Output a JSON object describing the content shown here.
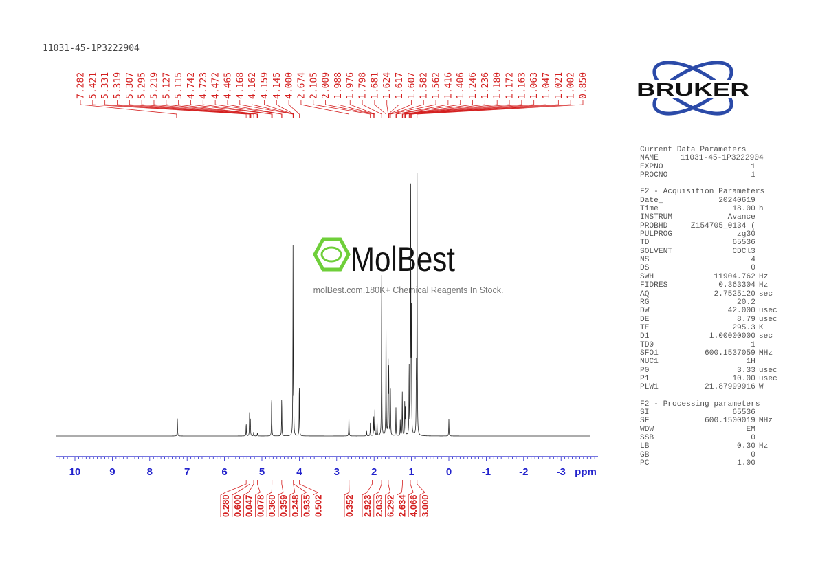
{
  "title": "11031-45-1P3222904",
  "logo": {
    "brand": "BRUKER",
    "color": "#2b4aa8"
  },
  "watermark": {
    "brand": "MolBest",
    "tagline": "molBest.com,180K+ Chemical Reagents In Stock.",
    "color": "#6fcf3a"
  },
  "colors": {
    "peak_labels": "#d42020",
    "axis": "#2222cc",
    "spectrum": "#222222"
  },
  "chart_data": {
    "type": "line",
    "title": "",
    "xlabel": "ppm",
    "xlim": [
      10.5,
      -3.9
    ],
    "x_reversed": true,
    "ticks": [
      "10",
      "9",
      "8",
      "7",
      "6",
      "5",
      "4",
      "3",
      "2",
      "1",
      "0",
      "-1",
      "-2",
      "-3"
    ],
    "tick_values": [
      10,
      9,
      8,
      7,
      6,
      5,
      4,
      3,
      2,
      1,
      0,
      -1,
      -2,
      -3
    ],
    "peak_labels": [
      "7.282",
      "5.421",
      "5.331",
      "5.319",
      "5.307",
      "5.295",
      "5.219",
      "5.127",
      "5.115",
      "4.742",
      "4.723",
      "4.472",
      "4.465",
      "4.168",
      "4.162",
      "4.159",
      "4.145",
      "4.000",
      "2.674",
      "2.105",
      "2.009",
      "1.988",
      "1.976",
      "1.798",
      "1.681",
      "1.624",
      "1.617",
      "1.607",
      "1.582",
      "1.562",
      "1.416",
      "1.406",
      "1.246",
      "1.236",
      "1.180",
      "1.172",
      "1.163",
      "1.063",
      "1.047",
      "1.021",
      "1.002",
      "0.850"
    ],
    "integrals": [
      {
        "value": "0.280",
        "ppm": 5.42
      },
      {
        "value": "0.600",
        "ppm": 5.32
      },
      {
        "value": "0.047",
        "ppm": 5.22
      },
      {
        "value": "0.078",
        "ppm": 5.12
      },
      {
        "value": "0.360",
        "ppm": 4.73
      },
      {
        "value": "0.359",
        "ppm": 4.47
      },
      {
        "value": "0.248",
        "ppm": 4.16
      },
      {
        "value": "0.935",
        "ppm": 4.15
      },
      {
        "value": "0.502",
        "ppm": 4.0
      },
      {
        "value": "0.352",
        "ppm": 2.67
      },
      {
        "value": "2.923",
        "ppm": 2.05
      },
      {
        "value": "2.033",
        "ppm": 1.8
      },
      {
        "value": "6.292",
        "ppm": 1.62
      },
      {
        "value": "2.634",
        "ppm": 1.24
      },
      {
        "value": "4.066",
        "ppm": 1.03
      },
      {
        "value": "3.000",
        "ppm": 0.85
      }
    ],
    "peaks": [
      {
        "ppm": 7.26,
        "intensity": 0.07
      },
      {
        "ppm": 5.42,
        "intensity": 0.05
      },
      {
        "ppm": 5.33,
        "intensity": 0.09
      },
      {
        "ppm": 5.31,
        "intensity": 0.07
      },
      {
        "ppm": 5.22,
        "intensity": 0.015
      },
      {
        "ppm": 5.12,
        "intensity": 0.012
      },
      {
        "ppm": 4.74,
        "intensity": 0.16
      },
      {
        "ppm": 4.47,
        "intensity": 0.15
      },
      {
        "ppm": 4.168,
        "intensity": 0.73
      },
      {
        "ppm": 4.15,
        "intensity": 0.12
      },
      {
        "ppm": 4.0,
        "intensity": 0.21
      },
      {
        "ppm": 2.674,
        "intensity": 0.08
      },
      {
        "ppm": 2.2,
        "intensity": 0.02
      },
      {
        "ppm": 2.1,
        "intensity": 0.05
      },
      {
        "ppm": 2.01,
        "intensity": 0.08
      },
      {
        "ppm": 1.98,
        "intensity": 0.1
      },
      {
        "ppm": 1.92,
        "intensity": 0.06
      },
      {
        "ppm": 1.798,
        "intensity": 0.65
      },
      {
        "ppm": 1.681,
        "intensity": 0.49
      },
      {
        "ppm": 1.624,
        "intensity": 0.3
      },
      {
        "ppm": 1.607,
        "intensity": 0.26
      },
      {
        "ppm": 1.562,
        "intensity": 0.18
      },
      {
        "ppm": 1.416,
        "intensity": 0.11
      },
      {
        "ppm": 1.3,
        "intensity": 0.06
      },
      {
        "ppm": 1.246,
        "intensity": 0.17
      },
      {
        "ppm": 1.18,
        "intensity": 0.13
      },
      {
        "ppm": 1.163,
        "intensity": 0.1
      },
      {
        "ppm": 1.063,
        "intensity": 0.28
      },
      {
        "ppm": 1.021,
        "intensity": 0.96
      },
      {
        "ppm": 1.002,
        "intensity": 0.45
      },
      {
        "ppm": 0.87,
        "intensity": 0.25
      },
      {
        "ppm": 0.85,
        "intensity": 1.0
      },
      {
        "ppm": 0.0,
        "intensity": 0.065
      }
    ]
  },
  "parameters": {
    "sections": [
      {
        "title": "Current Data Parameters",
        "rows": [
          [
            "NAME",
            "11031-45-1P3222904",
            ""
          ],
          [
            "EXPNO",
            "1",
            ""
          ],
          [
            "PROCNO",
            "1",
            ""
          ]
        ]
      },
      {
        "title": "F2 - Acquisition Parameters",
        "rows": [
          [
            "Date_",
            "20240619",
            ""
          ],
          [
            "Time",
            "18.00",
            "h"
          ],
          [
            "INSTRUM",
            "Avance",
            ""
          ],
          [
            "PROBHD",
            "Z154705_0134 (",
            ""
          ],
          [
            "PULPROG",
            "zg30",
            ""
          ],
          [
            "TD",
            "65536",
            ""
          ],
          [
            "SOLVENT",
            "CDCl3",
            ""
          ],
          [
            "NS",
            "4",
            ""
          ],
          [
            "DS",
            "0",
            ""
          ],
          [
            "SWH",
            "11904.762",
            "Hz"
          ],
          [
            "FIDRES",
            "0.363304",
            "Hz"
          ],
          [
            "AQ",
            "2.7525120",
            "sec"
          ],
          [
            "RG",
            "20.2",
            ""
          ],
          [
            "DW",
            "42.000",
            "usec"
          ],
          [
            "DE",
            "8.79",
            "usec"
          ],
          [
            "TE",
            "295.3",
            "K"
          ],
          [
            "D1",
            "1.00000000",
            "sec"
          ],
          [
            "TD0",
            "1",
            ""
          ],
          [
            "SFO1",
            "600.1537059",
            "MHz"
          ],
          [
            "NUC1",
            "1H",
            ""
          ],
          [
            "P0",
            "3.33",
            "usec"
          ],
          [
            "P1",
            "10.00",
            "usec"
          ],
          [
            "PLW1",
            "21.87999916",
            "W"
          ]
        ]
      },
      {
        "title": "F2 - Processing parameters",
        "rows": [
          [
            "SI",
            "65536",
            ""
          ],
          [
            "SF",
            "600.1500019",
            "MHz"
          ],
          [
            "WDW",
            "EM",
            ""
          ],
          [
            "SSB",
            "0",
            ""
          ],
          [
            "LB",
            "0.30",
            "Hz"
          ],
          [
            "GB",
            "0",
            ""
          ],
          [
            "PC",
            "1.00",
            ""
          ]
        ]
      }
    ]
  }
}
